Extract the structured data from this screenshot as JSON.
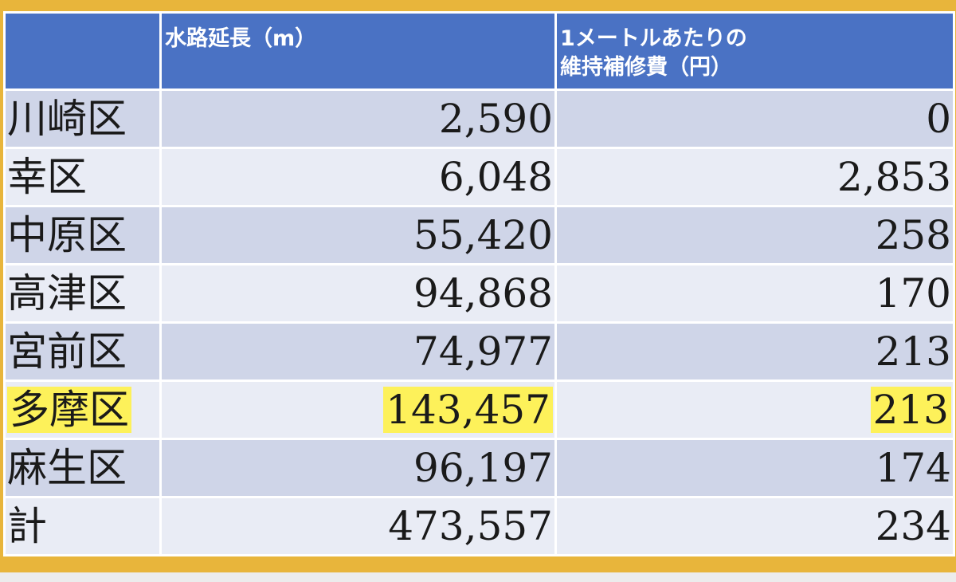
{
  "chart_data": {
    "type": "table",
    "columns": [
      "",
      "水路延長（m）",
      "1メートルあたりの\n維持補修費（円）"
    ],
    "rows": [
      {
        "name": "川崎区",
        "length": "2,590",
        "cost": "0"
      },
      {
        "name": "幸区",
        "length": "6,048",
        "cost": "2,853"
      },
      {
        "name": "中原区",
        "length": "55,420",
        "cost": "258"
      },
      {
        "name": "高津区",
        "length": "94,868",
        "cost": "170"
      },
      {
        "name": "宮前区",
        "length": "74,977",
        "cost": "213"
      },
      {
        "name": "多摩区",
        "length": "143,457",
        "cost": "213",
        "highlight": true
      },
      {
        "name": "麻生区",
        "length": "96,197",
        "cost": "174"
      },
      {
        "name": "計",
        "length": "473,557",
        "cost": "234"
      }
    ],
    "colors": {
      "header": "#4a72c4",
      "row_dark": "#cfd5e8",
      "row_light": "#e9ecf5",
      "highlight": "#fdf15a",
      "frame": "#e8b53b"
    }
  }
}
